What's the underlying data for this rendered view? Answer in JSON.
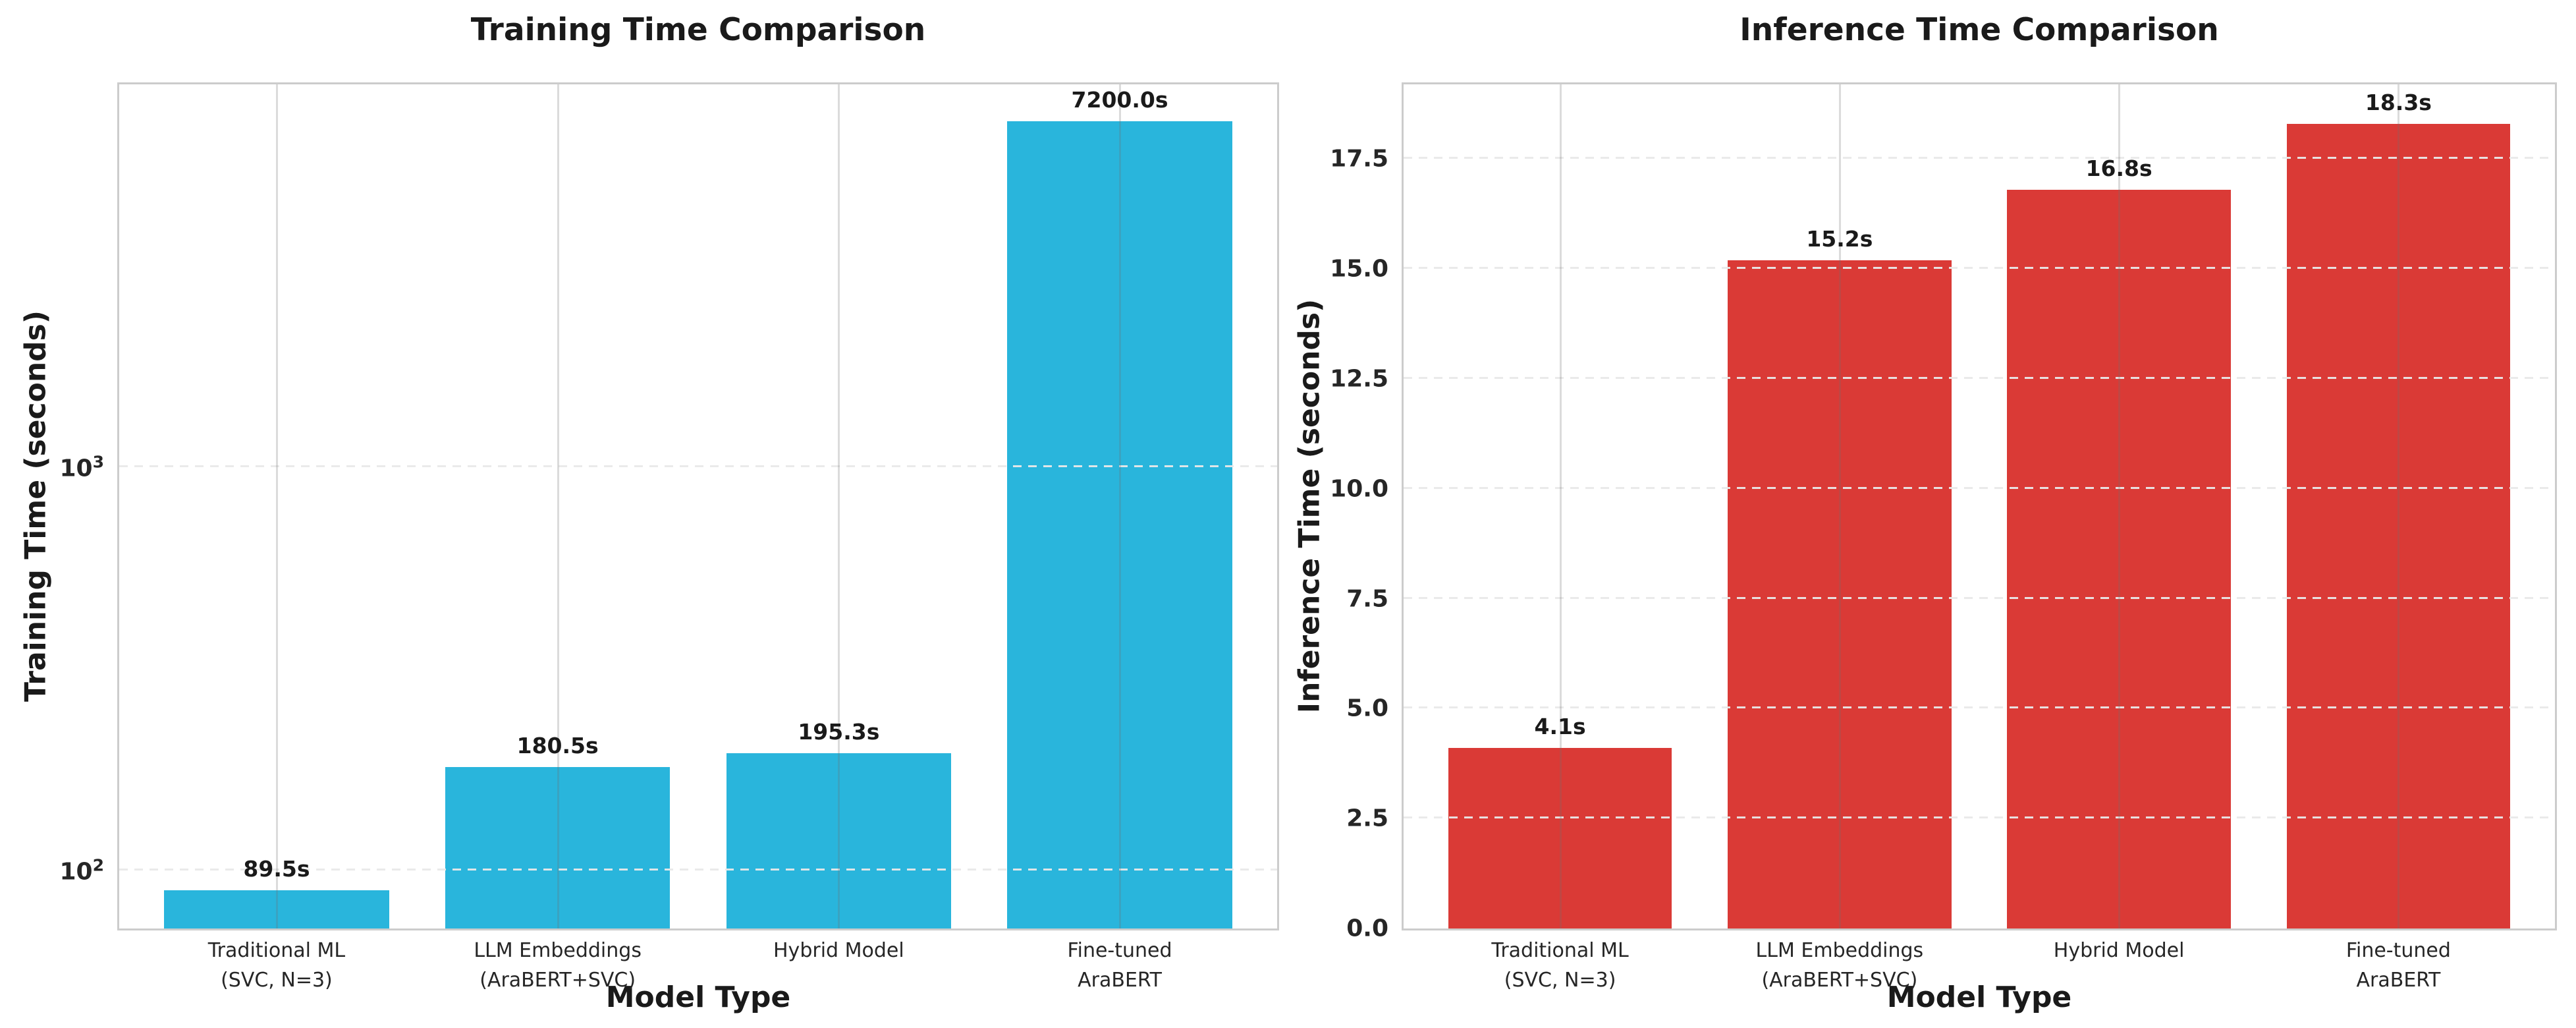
{
  "figure": {
    "background": "#ffffff",
    "spine_color": "#cccccc",
    "text_color": "#1a1a1a"
  },
  "chart_data": [
    {
      "type": "bar",
      "title": "Training Time Comparison",
      "xlabel": "Model Type",
      "ylabel": "Training Time (seconds)",
      "yscale": "log",
      "ylim": [
        71.9,
        8900
      ],
      "grid": true,
      "legend": null,
      "bar_color": "#29b5dc",
      "categories": [
        "Traditional ML\n(SVC, N=3)",
        "LLM Embeddings\n(AraBERT+SVC)",
        "Hybrid Model",
        "Fine-tuned\nAraBERT"
      ],
      "values": [
        89.5,
        180.5,
        195.3,
        7200.0
      ],
      "bar_labels": [
        "89.5s",
        "180.5s",
        "195.3s",
        "7200.0s"
      ],
      "yticks": [
        {
          "value": 100,
          "label": "10",
          "sup": "2"
        },
        {
          "value": 1000,
          "label": "10",
          "sup": "3"
        }
      ]
    },
    {
      "type": "bar",
      "title": "Inference Time Comparison",
      "xlabel": "Model Type",
      "ylabel": "Inference Time (seconds)",
      "yscale": "linear",
      "ylim": [
        0,
        19.2
      ],
      "grid": true,
      "legend": null,
      "bar_color": "#da3a36",
      "categories": [
        "Traditional ML\n(SVC, N=3)",
        "LLM Embeddings\n(AraBERT+SVC)",
        "Hybrid Model",
        "Fine-tuned\nAraBERT"
      ],
      "values": [
        4.1,
        15.2,
        16.8,
        18.3
      ],
      "bar_labels": [
        "4.1s",
        "15.2s",
        "16.8s",
        "18.3s"
      ],
      "yticks": [
        {
          "value": 0,
          "label": "0.0"
        },
        {
          "value": 2.5,
          "label": "2.5"
        },
        {
          "value": 5,
          "label": "5.0"
        },
        {
          "value": 7.5,
          "label": "7.5"
        },
        {
          "value": 10,
          "label": "10.0"
        },
        {
          "value": 12.5,
          "label": "12.5"
        },
        {
          "value": 15,
          "label": "15.0"
        },
        {
          "value": 17.5,
          "label": "17.5"
        }
      ]
    }
  ]
}
